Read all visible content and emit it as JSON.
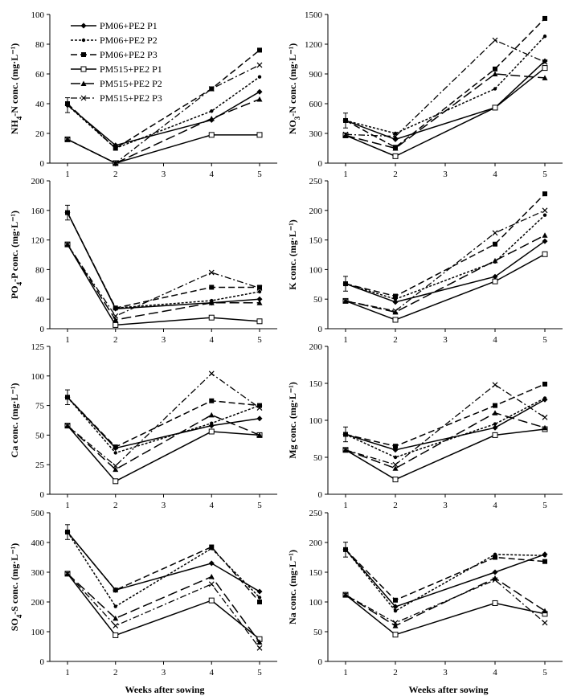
{
  "figure": {
    "x_label": "Weeks after sowing",
    "legend": [
      "PM06+PE2  P1",
      "PM06+PE2  P2",
      "PM06+PE2  P3",
      "PM515+PE2  P1",
      "PM515+PE2  P2",
      "PM515+PE2  P3"
    ]
  },
  "chart_data": [
    {
      "type": "line",
      "panel": "NH4-N",
      "ylabel": "NH4-N conc. (mg·L⁻¹)",
      "xlabel": "Weeks after sowing",
      "x": [
        1,
        2,
        4,
        5
      ],
      "xticks": [
        1,
        2,
        3,
        4,
        5
      ],
      "ylim": [
        0,
        100
      ],
      "yticks": [
        0,
        20,
        40,
        60,
        80,
        100
      ],
      "legend_position": "top-left",
      "series": [
        {
          "name": "PM06+PE2  P1",
          "values": [
            39,
            12,
            29,
            48
          ]
        },
        {
          "name": "PM06+PE2  P2",
          "values": [
            39,
            10,
            35,
            58
          ]
        },
        {
          "name": "PM06+PE2  P3",
          "values": [
            40,
            10,
            50,
            76
          ]
        },
        {
          "name": "PM515+PE2  P1",
          "values": [
            16,
            0,
            19,
            19
          ]
        },
        {
          "name": "PM515+PE2  P2",
          "values": [
            16,
            0,
            30,
            43
          ]
        },
        {
          "name": "PM515+PE2  P3",
          "values": [
            16,
            0,
            50,
            66
          ]
        }
      ]
    },
    {
      "type": "line",
      "panel": "NO3-N",
      "ylabel": "NO3-N conc. (mg·L⁻¹)",
      "xlabel": "Weeks after sowing",
      "x": [
        1,
        2,
        4,
        5
      ],
      "xticks": [
        1,
        2,
        3,
        4,
        5
      ],
      "ylim": [
        0,
        1500
      ],
      "yticks": [
        0,
        300,
        600,
        900,
        1200,
        1500
      ],
      "series": [
        {
          "name": "PM06+PE2  P1",
          "values": [
            430,
            240,
            560,
            1030
          ]
        },
        {
          "name": "PM06+PE2  P2",
          "values": [
            430,
            300,
            750,
            1280
          ]
        },
        {
          "name": "PM06+PE2  P3",
          "values": [
            430,
            160,
            950,
            1460
          ]
        },
        {
          "name": "PM515+PE2  P1",
          "values": [
            280,
            70,
            560,
            960
          ]
        },
        {
          "name": "PM515+PE2  P2",
          "values": [
            280,
            150,
            900,
            860
          ]
        },
        {
          "name": "PM515+PE2  P3",
          "values": [
            290,
            270,
            1240,
            1020
          ]
        }
      ]
    },
    {
      "type": "line",
      "panel": "PO4-P",
      "ylabel": "PO4-P conc. (mg·L⁻¹)",
      "xlabel": "Weeks after sowing",
      "x": [
        1,
        2,
        4,
        5
      ],
      "xticks": [
        1,
        2,
        3,
        4,
        5
      ],
      "ylim": [
        0,
        200
      ],
      "yticks": [
        0,
        40,
        80,
        120,
        160,
        200
      ],
      "series": [
        {
          "name": "PM06+PE2  P1",
          "values": [
            157,
            27,
            35,
            40
          ]
        },
        {
          "name": "PM06+PE2  P2",
          "values": [
            157,
            28,
            38,
            50
          ]
        },
        {
          "name": "PM06+PE2  P3",
          "values": [
            157,
            28,
            56,
            56
          ]
        },
        {
          "name": "PM515+PE2  P1",
          "values": [
            114,
            5,
            15,
            10
          ]
        },
        {
          "name": "PM515+PE2  P2",
          "values": [
            114,
            12,
            35,
            35
          ]
        },
        {
          "name": "PM515+PE2  P3",
          "values": [
            114,
            17,
            76,
            55
          ]
        }
      ]
    },
    {
      "type": "line",
      "panel": "K",
      "ylabel": "K conc. (mg·L⁻¹)",
      "xlabel": "Weeks after sowing",
      "x": [
        1,
        2,
        4,
        5
      ],
      "xticks": [
        1,
        2,
        3,
        4,
        5
      ],
      "ylim": [
        0,
        250
      ],
      "yticks": [
        0,
        50,
        100,
        150,
        200,
        250
      ],
      "series": [
        {
          "name": "PM06+PE2  P1",
          "values": [
            76,
            45,
            88,
            148
          ]
        },
        {
          "name": "PM06+PE2  P2",
          "values": [
            76,
            50,
            113,
            192
          ]
        },
        {
          "name": "PM06+PE2  P3",
          "values": [
            76,
            55,
            143,
            228
          ]
        },
        {
          "name": "PM515+PE2  P1",
          "values": [
            47,
            15,
            80,
            126
          ]
        },
        {
          "name": "PM515+PE2  P2",
          "values": [
            47,
            28,
            115,
            158
          ]
        },
        {
          "name": "PM515+PE2  P3",
          "values": [
            47,
            30,
            162,
            200
          ]
        }
      ]
    },
    {
      "type": "line",
      "panel": "Ca",
      "ylabel": "Ca conc. (mg·L⁻¹)",
      "xlabel": "Weeks after sowing",
      "x": [
        1,
        2,
        4,
        5
      ],
      "xticks": [
        1,
        2,
        3,
        4,
        5
      ],
      "ylim": [
        0,
        125
      ],
      "yticks": [
        0,
        25,
        50,
        75,
        100,
        125
      ],
      "series": [
        {
          "name": "PM06+PE2  P1",
          "values": [
            82,
            39,
            58,
            64
          ]
        },
        {
          "name": "PM06+PE2  P2",
          "values": [
            82,
            35,
            60,
            75
          ]
        },
        {
          "name": "PM06+PE2  P3",
          "values": [
            82,
            40,
            79,
            75
          ]
        },
        {
          "name": "PM515+PE2  P1",
          "values": [
            58,
            11,
            53,
            50
          ]
        },
        {
          "name": "PM515+PE2  P2",
          "values": [
            58,
            21,
            67,
            50
          ]
        },
        {
          "name": "PM515+PE2  P3",
          "values": [
            58,
            24,
            102,
            73
          ]
        }
      ]
    },
    {
      "type": "line",
      "panel": "Mg",
      "ylabel": "Mg conc. (mg·L⁻¹)",
      "xlabel": "Weeks after sowing",
      "x": [
        1,
        2,
        4,
        5
      ],
      "xticks": [
        1,
        2,
        3,
        4,
        5
      ],
      "ylim": [
        0,
        200
      ],
      "yticks": [
        0,
        50,
        100,
        150,
        200
      ],
      "series": [
        {
          "name": "PM06+PE2  P1",
          "values": [
            81,
            60,
            90,
            128
          ]
        },
        {
          "name": "PM06+PE2  P2",
          "values": [
            81,
            50,
            95,
            130
          ]
        },
        {
          "name": "PM06+PE2  P3",
          "values": [
            81,
            65,
            120,
            149
          ]
        },
        {
          "name": "PM515+PE2  P1",
          "values": [
            60,
            20,
            80,
            88
          ]
        },
        {
          "name": "PM515+PE2  P2",
          "values": [
            60,
            35,
            110,
            90
          ]
        },
        {
          "name": "PM515+PE2  P3",
          "values": [
            60,
            40,
            148,
            104
          ]
        }
      ]
    },
    {
      "type": "line",
      "panel": "SO4-S",
      "ylabel": "SO4-S conc. (mg·L⁻¹)",
      "xlabel": "Weeks after sowing",
      "x": [
        1,
        2,
        4,
        5
      ],
      "xticks": [
        1,
        2,
        3,
        4,
        5
      ],
      "ylim": [
        0,
        500
      ],
      "yticks": [
        0,
        100,
        200,
        300,
        400,
        500
      ],
      "series": [
        {
          "name": "PM06+PE2  P1",
          "values": [
            435,
            240,
            330,
            235
          ]
        },
        {
          "name": "PM06+PE2  P2",
          "values": [
            435,
            185,
            380,
            215
          ]
        },
        {
          "name": "PM06+PE2  P3",
          "values": [
            435,
            240,
            385,
            200
          ]
        },
        {
          "name": "PM515+PE2  P1",
          "values": [
            295,
            88,
            205,
            75
          ]
        },
        {
          "name": "PM515+PE2  P2",
          "values": [
            295,
            145,
            285,
            65
          ]
        },
        {
          "name": "PM515+PE2  P3",
          "values": [
            295,
            120,
            260,
            45
          ]
        }
      ]
    },
    {
      "type": "line",
      "panel": "Na",
      "ylabel": "Na conc. (mg·L⁻¹)",
      "xlabel": "Weeks after sowing",
      "x": [
        1,
        2,
        4,
        5
      ],
      "xticks": [
        1,
        2,
        3,
        4,
        5
      ],
      "ylim": [
        0,
        250
      ],
      "yticks": [
        0,
        50,
        100,
        150,
        200,
        250
      ],
      "series": [
        {
          "name": "PM06+PE2  P1",
          "values": [
            188,
            92,
            150,
            180
          ]
        },
        {
          "name": "PM06+PE2  P2",
          "values": [
            188,
            85,
            180,
            178
          ]
        },
        {
          "name": "PM06+PE2  P3",
          "values": [
            188,
            103,
            175,
            168
          ]
        },
        {
          "name": "PM515+PE2  P1",
          "values": [
            112,
            45,
            98,
            80
          ]
        },
        {
          "name": "PM515+PE2  P2",
          "values": [
            112,
            60,
            140,
            85
          ]
        },
        {
          "name": "PM515+PE2  P3",
          "values": [
            112,
            65,
            137,
            65
          ]
        }
      ]
    }
  ]
}
